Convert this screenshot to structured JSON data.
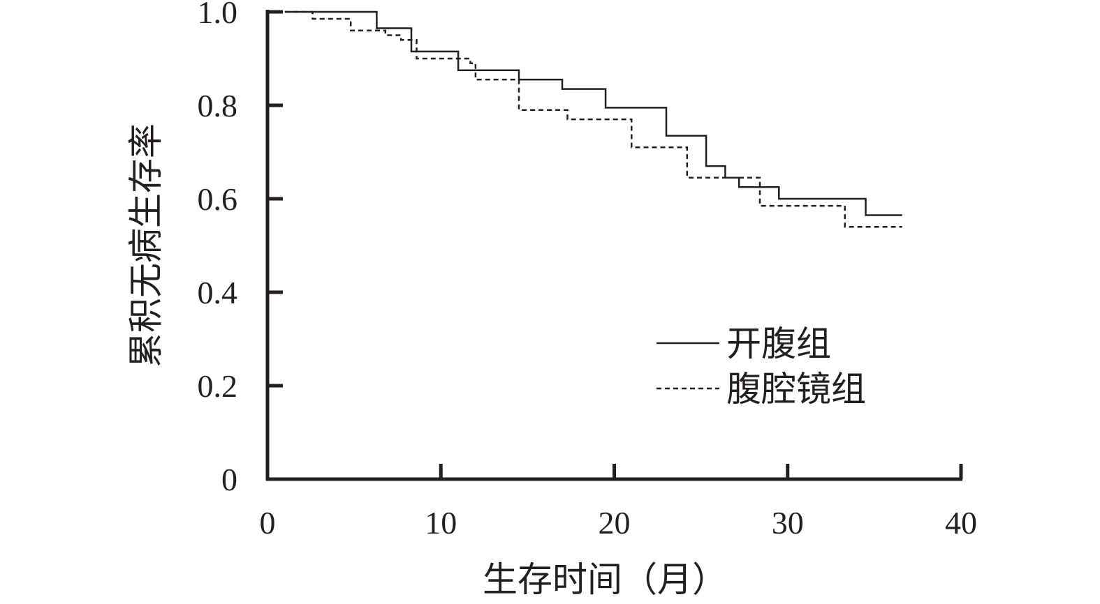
{
  "chart_data": {
    "type": "line",
    "subtype": "step",
    "title": "",
    "xlabel": "生存时间（月）",
    "ylabel": "累积无病生存率",
    "xlim": [
      0,
      40
    ],
    "ylim": [
      0,
      1.0
    ],
    "x_ticks": [
      0,
      10,
      20,
      30,
      40
    ],
    "x_tick_labels": [
      "0",
      "10",
      "20",
      "30",
      "40"
    ],
    "y_ticks": [
      0,
      0.2,
      0.4,
      0.6,
      0.8,
      1.0
    ],
    "y_tick_labels": [
      "0",
      "0.2",
      "0.4",
      "0.6",
      "0.8",
      "1.0"
    ],
    "grid": false,
    "legend_position": "center-right",
    "series": [
      {
        "name": "开腹组",
        "line_style": "solid",
        "color": "#231f20",
        "x": [
          1.0,
          6.3,
          8.3,
          11.0,
          14.5,
          17.0,
          19.5,
          23.0,
          25.3,
          26.4,
          27.2,
          29.5,
          34.5,
          36.6
        ],
        "values": [
          1.0,
          0.965,
          0.915,
          0.875,
          0.855,
          0.835,
          0.795,
          0.735,
          0.67,
          0.645,
          0.625,
          0.6,
          0.565,
          0.565
        ]
      },
      {
        "name": "腹腔镜组",
        "line_style": "dashed",
        "color": "#231f20",
        "x": [
          1.0,
          2.6,
          4.8,
          6.8,
          7.7,
          8.6,
          11.7,
          12.0,
          14.5,
          17.3,
          21.0,
          24.2,
          26.5,
          28.4,
          33.3,
          36.6
        ],
        "values": [
          1.0,
          0.985,
          0.96,
          0.95,
          0.94,
          0.9,
          0.89,
          0.855,
          0.79,
          0.77,
          0.71,
          0.645,
          0.645,
          0.585,
          0.54,
          0.54
        ]
      }
    ]
  }
}
